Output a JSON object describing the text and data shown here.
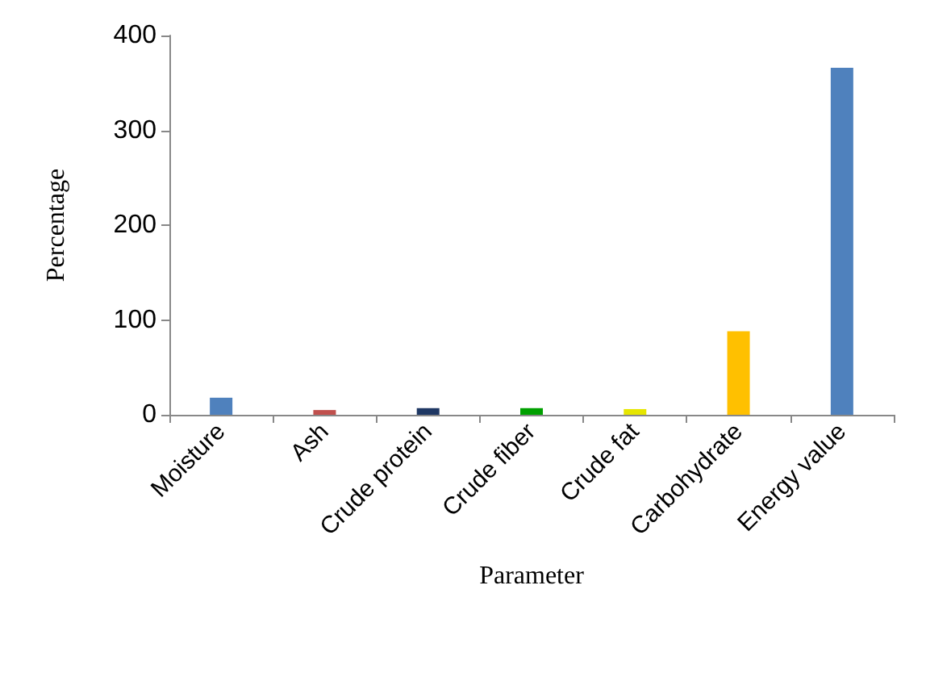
{
  "chart_data": {
    "type": "bar",
    "xlabel": "Parameter",
    "ylabel": "Percentage",
    "categories": [
      "Moisture",
      "Ash",
      "Crude protein",
      "Crude fiber",
      "Crude fat",
      "Carbohydrate",
      "Energy value"
    ],
    "values": [
      18,
      5,
      7,
      7,
      6,
      88,
      366
    ],
    "colors": [
      "#4f81bd",
      "#c0504d",
      "#1f3864",
      "#00a000",
      "#e6e600",
      "#ffc000",
      "#4f81bd"
    ],
    "ylim": [
      0,
      400
    ],
    "yticks": [
      0,
      100,
      200,
      300,
      400
    ],
    "grid": false
  }
}
